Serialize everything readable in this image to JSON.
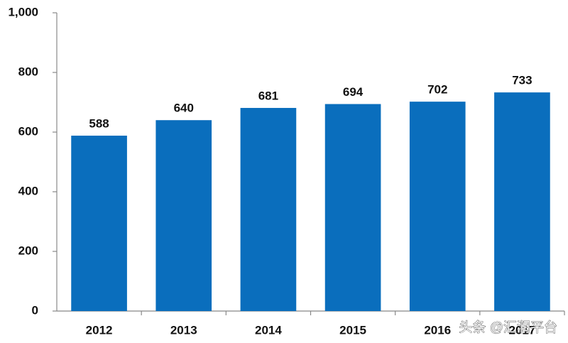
{
  "chart_data": {
    "type": "bar",
    "categories": [
      "2012",
      "2013",
      "2014",
      "2015",
      "2016",
      "2017"
    ],
    "values": [
      588,
      640,
      681,
      694,
      702,
      733
    ],
    "color": "#0a6ebd",
    "ylim": [
      0,
      1000
    ],
    "yticks": [
      0,
      200,
      400,
      600,
      800,
      {
        "value": 1000,
        "label": "1,000"
      }
    ],
    "grid": false,
    "watermark": "头条 @汇润平台"
  }
}
